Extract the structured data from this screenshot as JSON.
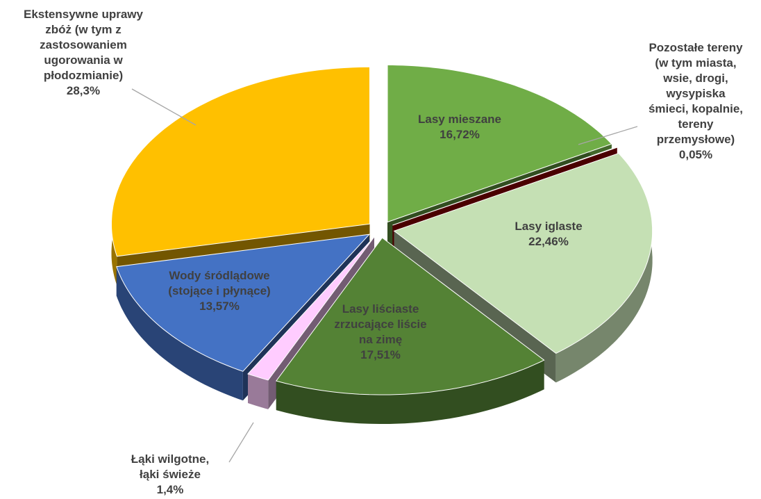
{
  "chart_data": {
    "type": "pie3d",
    "categories": [
      "Lasy mieszane",
      "Pozostałe tereny\n(w tym miasta,\nwsie, drogi,\nwysypiska\nśmieci, kopalnie,\ntereny\nprzemysłowe)",
      "Lasy iglaste",
      "Lasy liściaste\nzrzucające liście\nna zimę",
      "Łąki wilgotne,\nłąki świeże",
      "Wody śródlądowe\n(stojące i płynące)",
      "Ekstensywne uprawy\nzbóż (w tym z\nzastosowaniem\nugorowania w\npłodozmianie)"
    ],
    "values": [
      16.72,
      0.05,
      22.46,
      17.51,
      1.4,
      13.57,
      28.3
    ],
    "value_labels": [
      "16,72%",
      "0,05%",
      "22,46%",
      "17,51%",
      "1,4%",
      "13,57%",
      "28,3%"
    ],
    "colors": [
      "#70ad47",
      "#a50000",
      "#c5e0b4",
      "#548235",
      "#ffccff",
      "#4472c4",
      "#ffc000"
    ]
  }
}
